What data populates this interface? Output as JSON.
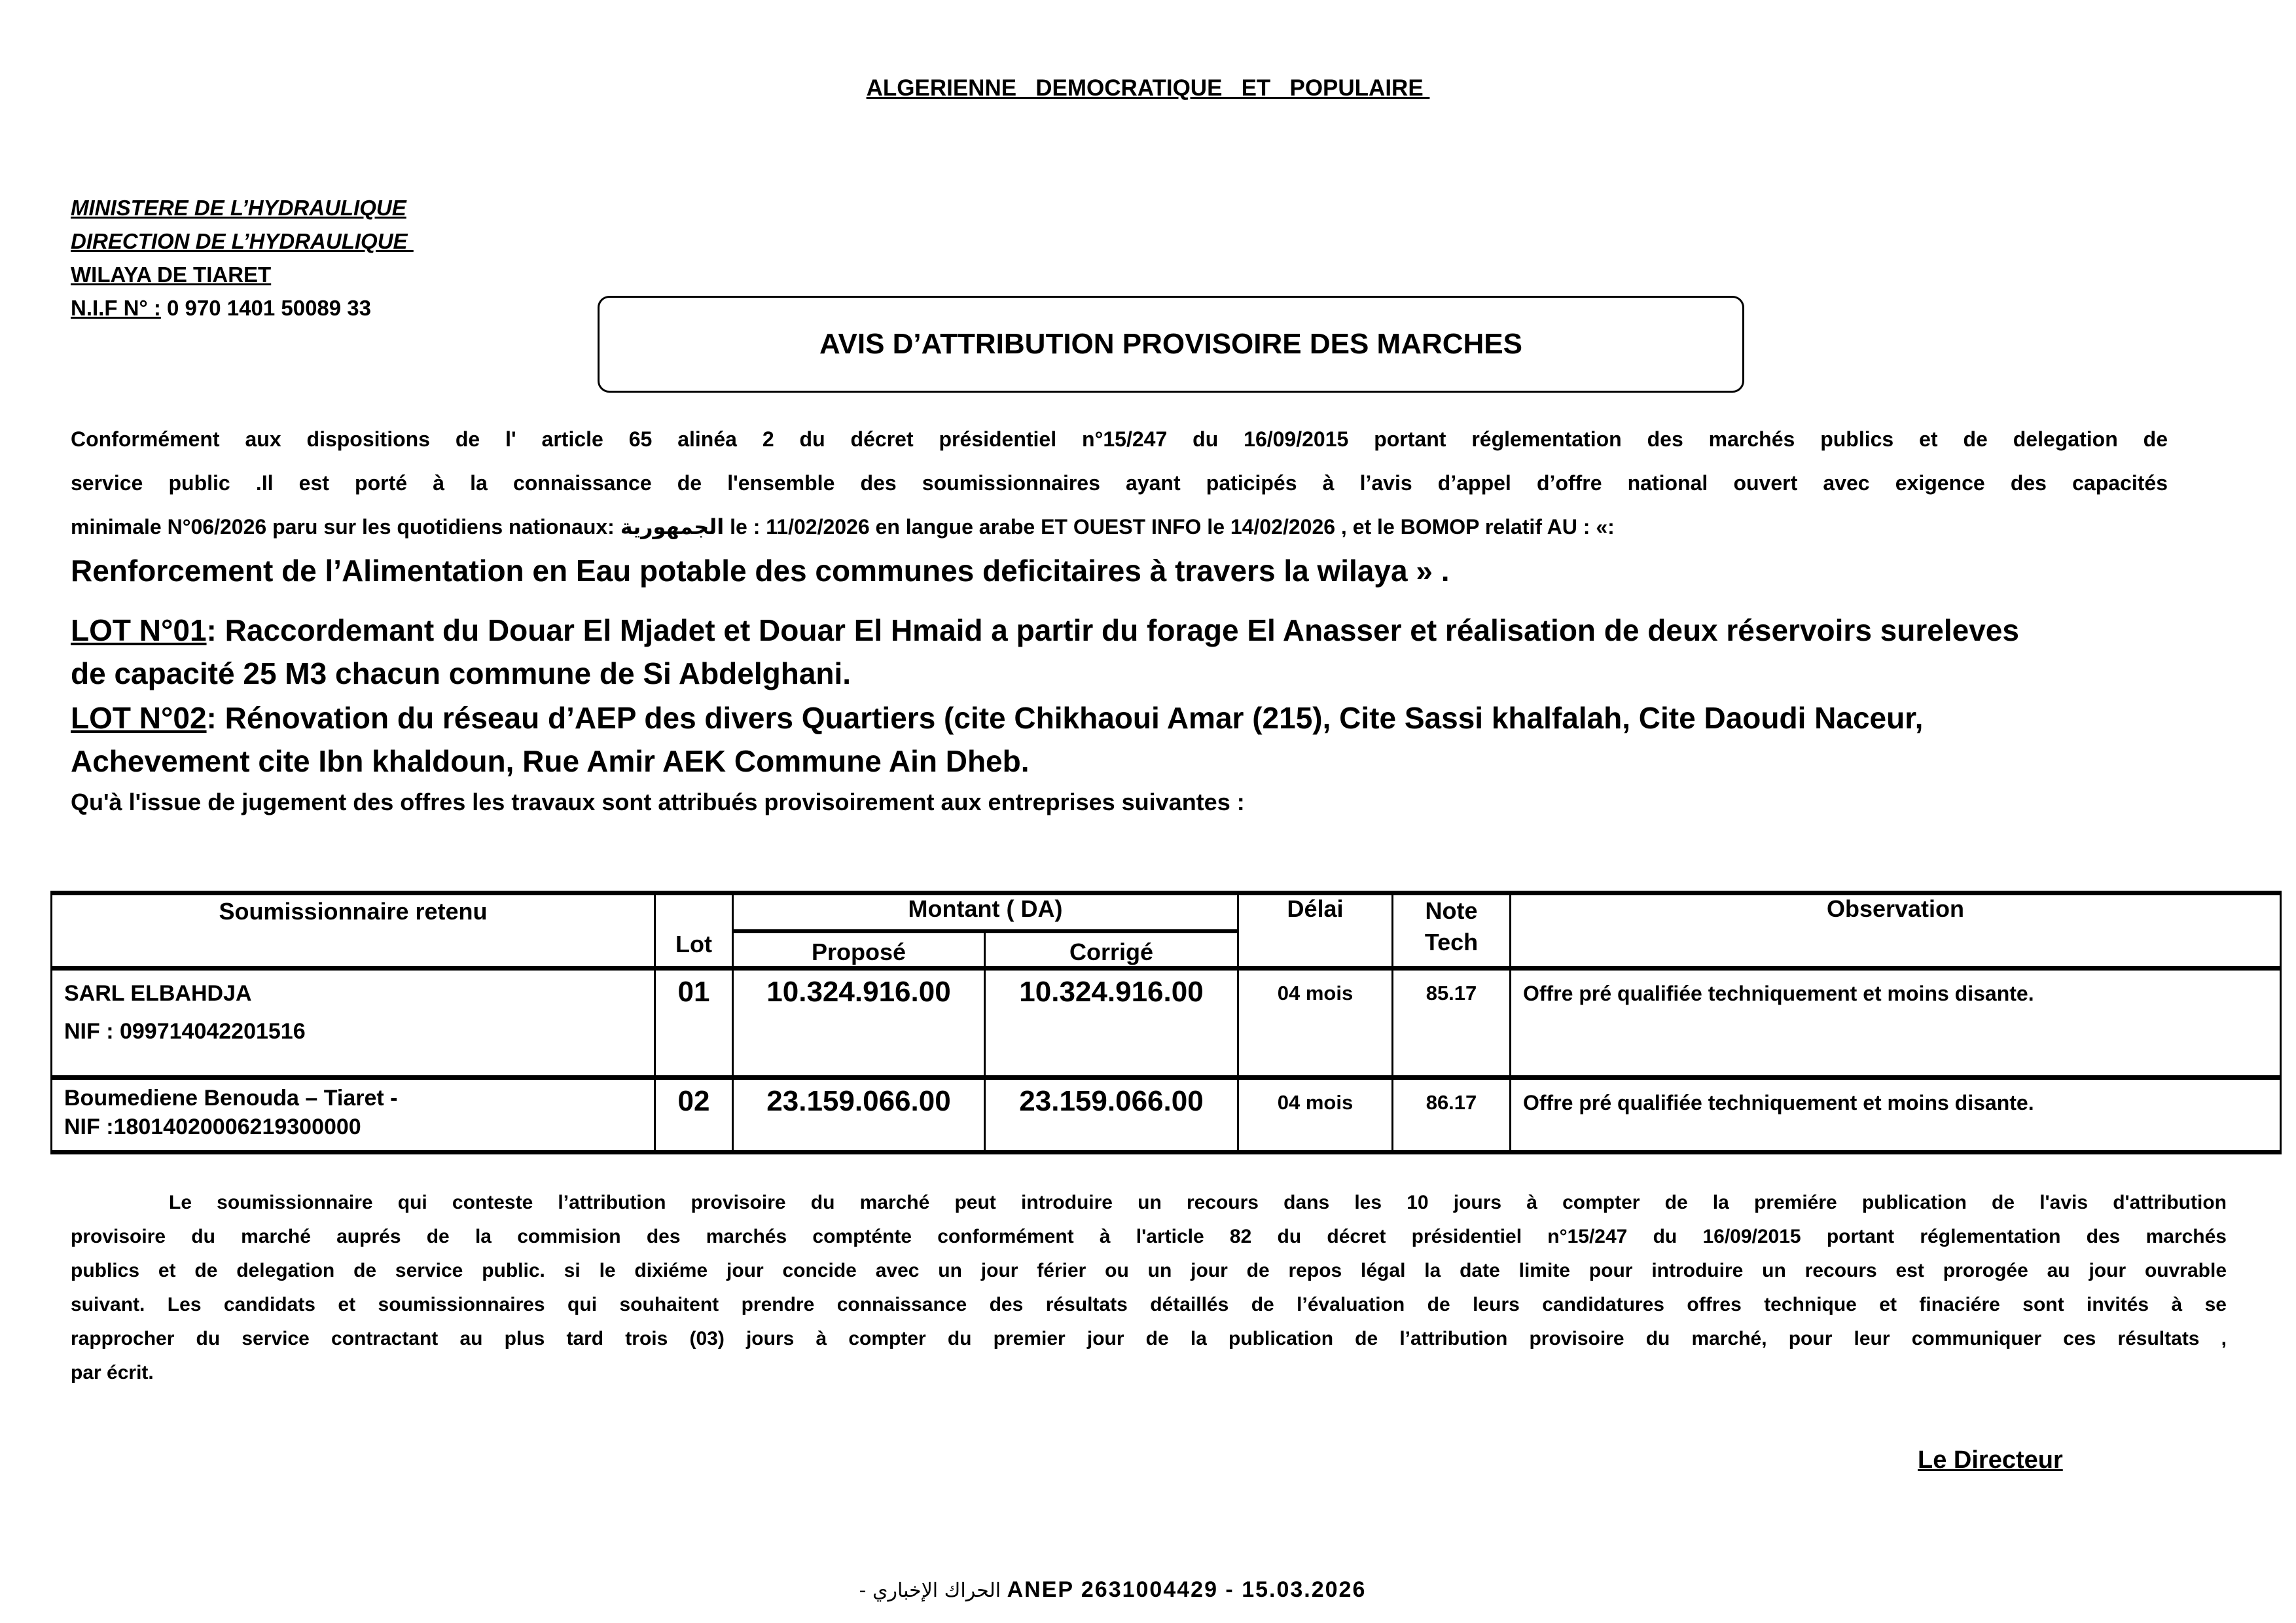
{
  "header": {
    "country": "ALGERIENNE   DEMOCRATIQUE   ET   POPULAIRE "
  },
  "issuer": {
    "ministry": "MINISTERE DE L’HYDRAULIQUE",
    "direction": "DIRECTION DE L’HYDRAULIQUE ",
    "wilaya": "WILAYA DE TIARET",
    "nif_label": "N.I.F N° :",
    "nif_value": " 0 970 1401 50089 33"
  },
  "title": "AVIS D’ATTRIBUTION PROVISOIRE DES MARCHES",
  "intro": {
    "lines": [
      "Conformément aux dispositions de l' article 65 alinéa 2 du décret présidentiel n°15/247 du 16/09/2015 portant réglementation des marchés publics et de delegation de",
      "service public .Il est porté à la connaissance de l'ensemble des soumissionnaires ayant paticipés à l’avis d’appel d’offre national ouvert avec exigence des capacités"
    ],
    "line3_a": "minimale N°06/2026 paru sur les quotidiens nationaux:  ",
    "newspaper_arabic": "الجمهورية",
    "line3_b": "  le : 11/02/2026  en langue arabe ET OUEST INFO le 14/02/2026 , et le BOMOP relatif AU : «:",
    "project": "Renforcement de l’Alimentation en Eau potable des communes deficitaires à travers la wilaya » ."
  },
  "lots": [
    {
      "label": "LOT N°01",
      "lines": [
        ": Raccordemant du Douar El Mjadet et Douar El Hmaid a partir du forage El Anasser et réalisation de deux réservoirs sureleves",
        "de capacité 25 M3 chacun commune de Si Abdelghani."
      ]
    },
    {
      "label": "LOT N°02",
      "lines": [
        ": Rénovation du réseau d’AEP des divers Quartiers (cite Chikhaoui Amar (215), Cite Sassi khalfalah, Cite Daoudi Naceur,",
        "Achevement cite Ibn khaldoun, Rue Amir AEK Commune Ain Dheb."
      ]
    }
  ],
  "award_intro": "Qu'à l'issue de jugement des offres les travaux sont attribués provisoirement aux entreprises suivantes :",
  "table": {
    "headers": {
      "bidder": "Soumissionnaire retenu",
      "lot": "Lot",
      "amount": "Montant ( DA)",
      "proposed": "Proposé",
      "corrected": "Corrigé",
      "delay": "Délai",
      "note_1": "Note",
      "note_2": "Tech",
      "observation": "Observation"
    },
    "rows": [
      {
        "bidder": "SARL ELBAHDJA",
        "nif": "NIF : 099714042201516",
        "lot": "01",
        "proposed": "10.324.916.00",
        "corrected": "10.324.916.00",
        "delay": "04 mois",
        "note": "85.17",
        "observation": "Offre pré qualifiée techniquement et moins disante."
      },
      {
        "bidder": "Boumediene Benouda – Tiaret -",
        "nif": "NIF :18014020006219300000",
        "lot": "02",
        "proposed": "23.159.066.00",
        "corrected": "23.159.066.00",
        "delay": "04 mois",
        "note": "86.17",
        "observation": "Offre pré qualifiée techniquement et moins disante."
      }
    ]
  },
  "appeal": {
    "lines": [
      "Le soumissionnaire qui conteste l’attribution provisoire du marché peut introduire un recours dans les 10 jours   à compter   de la premiére publication de l'avis d'attribution",
      "provisoire du marché auprés de la commision des marchés compténte conformément à l'article 82 du décret présidentiel n°15/247 du 16/09/2015 portant réglementation des marchés",
      "publics et de delegation de service public. si le dixiéme   jour concide avec   un jour férier ou un jour de repos légal la date limite pour introduire un recours est prorogée au jour ouvrable",
      "suivant.   Les candidats et soumissionnaires qui souhaitent prendre connaissance des résultats détaillés de l’évaluation de leurs candidatures offres technique et finaciére sont invités à se",
      "rapprocher du service contractant au plus tard trois (03) jours à compter   du premier   jour de la publication de l’attribution provisoire du marché, pour leur communiquer ces résultats ,",
      "par écrit."
    ]
  },
  "signature": "Le Directeur",
  "footer": {
    "arabic": "الحراك الإخباري -",
    "ref": " ANEP 2631004429 - 15.03.2026"
  }
}
